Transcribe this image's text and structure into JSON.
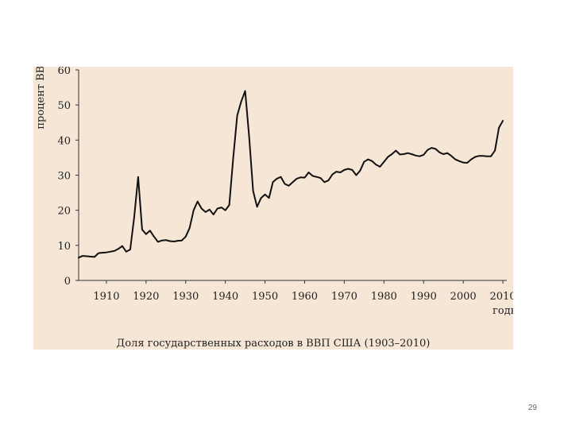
{
  "slide": {
    "page_number": "29",
    "colors": {
      "panel_background": "#f5e6d6",
      "line": "#111111",
      "page": "#ffffff"
    }
  },
  "chart_data": {
    "type": "line",
    "title": "Доля государственных расходов в ВВП США (1903–2010)",
    "xlabel": "годы",
    "ylabel": "процент ВВП",
    "xlim": [
      1903,
      2011
    ],
    "ylim": [
      0,
      60
    ],
    "x_ticks": [
      1910,
      1920,
      1930,
      1940,
      1950,
      1960,
      1970,
      1980,
      1990,
      2000,
      2010
    ],
    "x_tick_labels": [
      "1910",
      "1920",
      "1930",
      "1940",
      "1950",
      "1960",
      "1970",
      "1980",
      "1990",
      "2000",
      "2010"
    ],
    "y_ticks": [
      0,
      10,
      20,
      30,
      40,
      50,
      60
    ],
    "y_tick_labels": [
      "0",
      "10",
      "20",
      "30",
      "40",
      "50",
      "60"
    ],
    "grid": false,
    "legend": "none",
    "series": [
      {
        "x": [
          1903,
          1904,
          1905,
          1906,
          1907,
          1908,
          1909,
          1910,
          1911,
          1912,
          1913,
          1914,
          1915,
          1916,
          1917,
          1918,
          1919,
          1920,
          1921,
          1922,
          1923,
          1924,
          1925,
          1926,
          1927,
          1928,
          1929,
          1930,
          1931,
          1932,
          1933,
          1934,
          1935,
          1936,
          1937,
          1938,
          1939,
          1940,
          1941,
          1942,
          1943,
          1944,
          1945,
          1946,
          1947,
          1948,
          1949,
          1950,
          1951,
          1952,
          1953,
          1954,
          1955,
          1956,
          1957,
          1958,
          1959,
          1960,
          1961,
          1962,
          1963,
          1964,
          1965,
          1966,
          1967,
          1968,
          1969,
          1970,
          1971,
          1972,
          1973,
          1974,
          1975,
          1976,
          1977,
          1978,
          1979,
          1980,
          1981,
          1982,
          1983,
          1984,
          1985,
          1986,
          1987,
          1988,
          1989,
          1990,
          1991,
          1992,
          1993,
          1994,
          1995,
          1996,
          1997,
          1998,
          1999,
          2000,
          2001,
          2002,
          2003,
          2004,
          2005,
          2006,
          2007,
          2008,
          2009,
          2010
        ],
        "values": [
          6.5,
          7,
          6.9,
          6.8,
          6.7,
          7.8,
          7.9,
          8,
          8.2,
          8.4,
          9,
          9.8,
          8.2,
          8.8,
          18,
          29.5,
          14.5,
          13.2,
          14.2,
          12.5,
          11,
          11.4,
          11.5,
          11.2,
          11.1,
          11.3,
          11.4,
          12.5,
          15,
          20,
          22.5,
          20.5,
          19.5,
          20.2,
          18.8,
          20.5,
          20.8,
          20,
          21.5,
          35,
          47,
          51,
          54,
          41,
          25.5,
          21,
          23.5,
          24.5,
          23.5,
          28,
          29,
          29.5,
          27.5,
          27,
          28,
          29,
          29.4,
          29.3,
          30.8,
          29.8,
          29.5,
          29.2,
          28,
          28.5,
          30.2,
          31,
          30.8,
          31.5,
          31.8,
          31.5,
          30,
          31.3,
          33.8,
          34.5,
          34,
          33,
          32.4,
          33.8,
          35.2,
          36,
          37,
          35.9,
          36,
          36.3,
          36,
          35.6,
          35.4,
          35.8,
          37.2,
          37.8,
          37.5,
          36.5,
          36,
          36.3,
          35.5,
          34.5,
          34,
          33.6,
          33.5,
          34.5,
          35.2,
          35.5,
          35.5,
          35.4,
          35.4,
          37,
          43.5,
          45.5
        ]
      }
    ]
  }
}
